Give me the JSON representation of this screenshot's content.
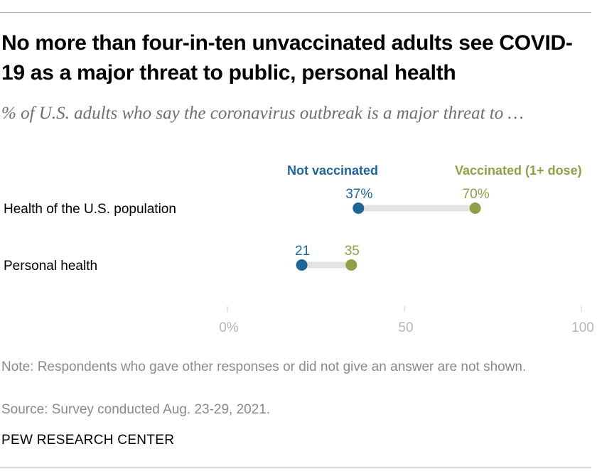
{
  "title": "No more than four-in-ten unvaccinated adults see COVID-19 as a major threat to public, personal health",
  "subtitle": "% of U.S. adults who say the coronavirus outbreak is a major threat to …",
  "note": "Note: Respondents who gave other responses or did not give an answer are not shown.",
  "source": "Source: Survey conducted Aug. 23-29, 2021.",
  "footer": "PEW RESEARCH CENTER",
  "colors": {
    "not_vaccinated": "#1f6595",
    "vaccinated": "#949d48",
    "connector": "#e3e3e3",
    "axis": "#c8c8c8",
    "tick_label": "#b5b5b5"
  },
  "chart_data": {
    "type": "dot",
    "categories": [
      "Health of the U.S. population",
      "Personal health"
    ],
    "series": [
      {
        "name": "Not vaccinated",
        "values": [
          37,
          21
        ],
        "labels": [
          "37%",
          "21"
        ]
      },
      {
        "name": "Vaccinated (1+ dose)",
        "values": [
          70,
          35
        ],
        "labels": [
          "70%",
          "35"
        ]
      }
    ],
    "xlim": [
      0,
      100
    ],
    "xticks": [
      0,
      50,
      100
    ],
    "xtick_labels": [
      "0%",
      "50",
      "100"
    ],
    "legend_placement": "top"
  }
}
